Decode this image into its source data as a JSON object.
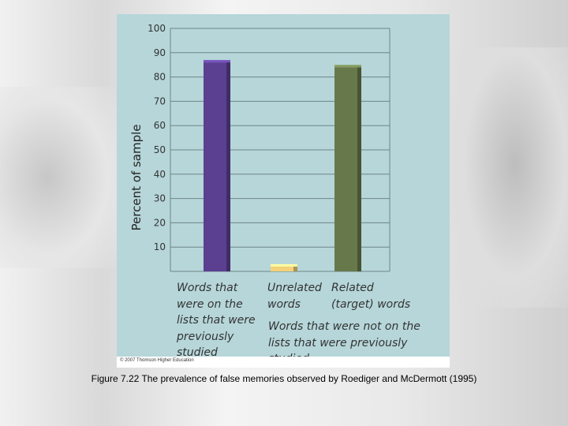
{
  "chart_data": {
    "type": "bar",
    "categories": [
      "Words that were on the lists that were previously studied",
      "Unrelated words",
      "Related (target) words"
    ],
    "values": [
      86,
      2,
      84
    ],
    "group_label": "Words that were not on the lists that were previously studied",
    "ylabel": "Percent of sample",
    "xlabel": "",
    "ylim": [
      0,
      100
    ],
    "yticks": [
      10,
      20,
      30,
      40,
      50,
      60,
      70,
      80,
      90,
      100
    ],
    "grid": true,
    "bar_colors": [
      "#5b3f91",
      "#f3d27a",
      "#67784a"
    ],
    "background": "#b6d6d9"
  },
  "copyright": "© 2007 Thomson Higher Education",
  "caption": "Figure 7.22  The prevalence of false memories observed by Roediger and McDermott (1995)"
}
